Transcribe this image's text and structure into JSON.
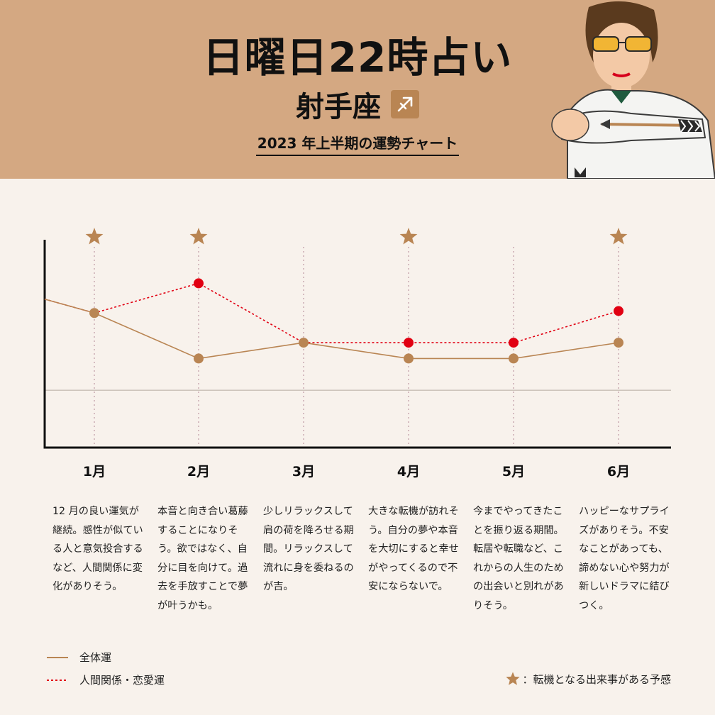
{
  "header": {
    "title": "日曜日22時占い",
    "sign": "射手座",
    "subtitle": "2023 年上半期の運勢チャート"
  },
  "colors": {
    "header_bg": "#d4a882",
    "body_bg": "#f8f2ec",
    "overall": "#b98553",
    "love": "#e10012",
    "star": "#b98553"
  },
  "chart_data": {
    "type": "line",
    "categories": [
      "1月",
      "2月",
      "3月",
      "4月",
      "5月",
      "6月"
    ],
    "start_value": {
      "overall": 6.0,
      "love": 6.0
    },
    "series": [
      {
        "name": "全体運",
        "style": "solid",
        "values": [
          5.3,
          3.0,
          3.8,
          3.0,
          3.0,
          3.8
        ]
      },
      {
        "name": "人間関係・恋愛運",
        "style": "dotted",
        "values": [
          5.3,
          6.8,
          3.8,
          3.8,
          3.8,
          5.4
        ]
      }
    ],
    "baseline": 1.4,
    "ylim": [
      -1.5,
      9
    ],
    "stars": [
      true,
      true,
      false,
      true,
      false,
      true
    ],
    "grid": "vertical-dotted"
  },
  "months": [
    "1月",
    "2月",
    "3月",
    "4月",
    "5月",
    "6月"
  ],
  "descriptions": [
    "12 月の良い運気が継続。感性が似ている人と意気投合するなど、人間関係に変化がありそう。",
    "本音と向き合い葛藤することになりそう。欲ではなく、自分に目を向けて。過去を手放すことで夢が叶うかも。",
    "少しリラックスして肩の荷を降ろせる期間。リラックスして流れに身を委ねるのが吉。",
    "大きな転機が訪れそう。自分の夢や本音を大切にすると幸せがやってくるので不安にならないで。",
    "今までやってきたことを振り返る期間。転居や転職など、これからの人生のための出会いと別れがありそう。",
    "ハッピーなサプライズがありそう。不安なことがあっても、諦めない心や努力が新しいドラマに結びつく。"
  ],
  "legend": {
    "overall": "全体運",
    "love": "人間関係・恋愛運",
    "star": "：転機となる出来事がある予感"
  }
}
